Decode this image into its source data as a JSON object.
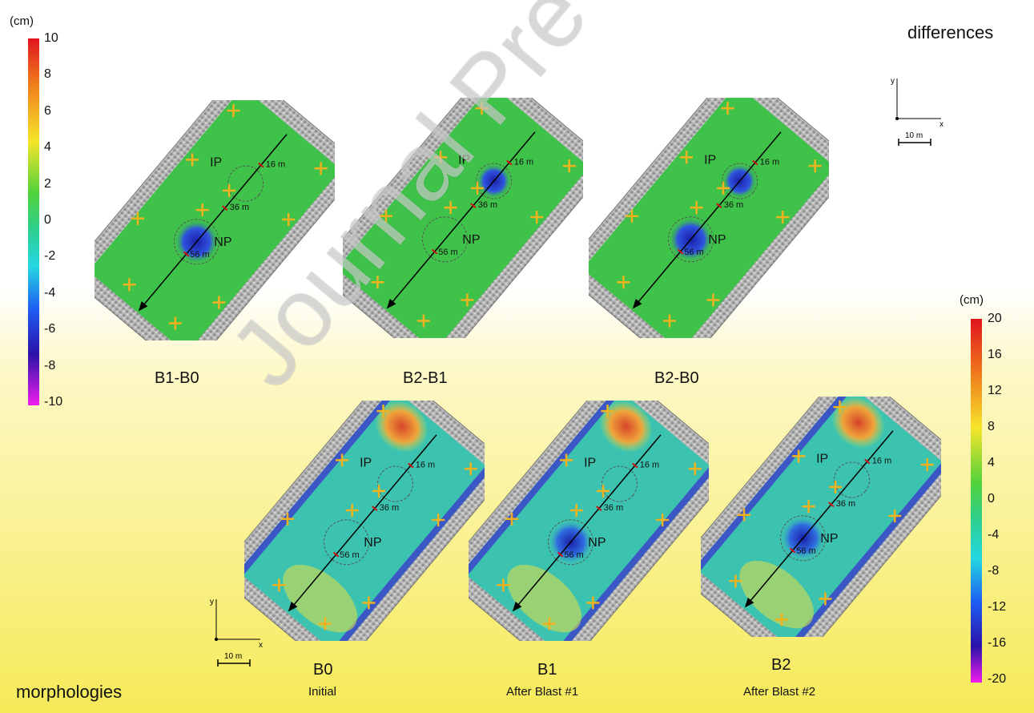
{
  "diff_section": {
    "title": "differences"
  },
  "morph_section": {
    "title": "morphologies"
  },
  "diff_colorbar": {
    "unit": "(cm)",
    "ticks": [
      "10",
      "8",
      "6",
      "4",
      "2",
      "0",
      "-2",
      "-4",
      "-6",
      "-8",
      "-10"
    ]
  },
  "morph_colorbar": {
    "unit": "(cm)",
    "ticks": [
      "20",
      "16",
      "12",
      "8",
      "4",
      "0",
      "-4",
      "-8",
      "-12",
      "-16",
      "-20"
    ]
  },
  "panels": [
    {
      "id": "b1-b0",
      "label": "B1-B0",
      "sub": ""
    },
    {
      "id": "b2-b1",
      "label": "B2-B1",
      "sub": ""
    },
    {
      "id": "b2-b0",
      "label": "B2-B0",
      "sub": ""
    },
    {
      "id": "b0",
      "label": "B0",
      "sub": "Initial"
    },
    {
      "id": "b1",
      "label": "B1",
      "sub": "After Blast #1"
    },
    {
      "id": "b2",
      "label": "B2",
      "sub": "After Blast #2"
    }
  ],
  "map_labels": {
    "ip": "IP",
    "np": "NP",
    "d16": "16 m",
    "d36": "36 m",
    "d56": "56 m"
  },
  "scale_bar": {
    "x_axis": "x",
    "y_axis": "y",
    "length": "10 m"
  },
  "watermark": "Journal Pre-proof",
  "colors": {
    "diff_field": "#3fc24a",
    "morph_field": "#3cc3b0",
    "depression": "#2a3ad0",
    "uplift": "#e0642a",
    "marker": "#f2b21e",
    "profile_line": "#000000"
  }
}
